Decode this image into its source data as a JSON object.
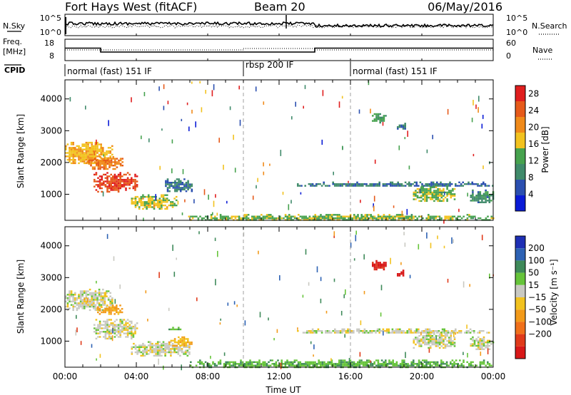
{
  "header": {
    "station": "Fort Hays West (fitACF)",
    "beam": "Beam 20",
    "date": "06/May/2016"
  },
  "noise_panel": {
    "left_label": "N.Sky",
    "right_label": "N.Search",
    "left_ticks": [
      "10^5",
      "10^0"
    ],
    "right_ticks": [
      "10^5",
      "10^0"
    ]
  },
  "freq_panel": {
    "left_label_top": "Freq.",
    "left_label_unit": "[MHz]",
    "left_ticks": [
      "18",
      "8"
    ],
    "right_label": "Nave",
    "right_ticks": [
      "60",
      "0"
    ]
  },
  "cpid": {
    "label": "CPID",
    "segments": [
      {
        "label": "normal (fast) 151 IF",
        "start_h": 0
      },
      {
        "label": "rbsp 200 IF",
        "start_h": 10
      },
      {
        "label": "normal (fast) 151 IF",
        "start_h": 16
      }
    ]
  },
  "colors": {
    "power_scale": [
      "#0a1bd6",
      "#2b4fb0",
      "#3f8a6a",
      "#46a24e",
      "#f2c21f",
      "#f08a1a",
      "#e65a1a",
      "#e01e1e"
    ],
    "velocity_scale": [
      "#1e2fb4",
      "#2d62b4",
      "#3f8a5a",
      "#66c43a",
      "#c9c9c2",
      "#f2c21f",
      "#f29a1a",
      "#f0701a",
      "#e03a1a",
      "#d81818"
    ]
  },
  "chart_data": [
    {
      "type": "heatmap",
      "name": "power",
      "xlabel": "Time UT",
      "ylabel": "Slant Range [km]",
      "xlim_hours": [
        0,
        24
      ],
      "ylim_km": [
        180,
        4600
      ],
      "x_ticks": [
        "00:00",
        "04:00",
        "08:00",
        "12:00",
        "16:00",
        "20:00",
        "00:00"
      ],
      "y_ticks": [
        1000,
        2000,
        3000,
        4000
      ],
      "colorbar": {
        "label": "Power [dB]",
        "ticks": [
          4,
          8,
          12,
          16,
          20,
          24,
          28
        ],
        "range": [
          0,
          30
        ]
      },
      "mode_change_hours": [
        10,
        16
      ],
      "regions": [
        {
          "t0": 0.0,
          "t1": 2.7,
          "r0": 1950,
          "r1": 2650,
          "value": 18
        },
        {
          "t0": 1.2,
          "t1": 3.2,
          "r0": 1800,
          "r1": 2200,
          "value": 22
        },
        {
          "t0": 1.6,
          "t1": 4.0,
          "r0": 1100,
          "r1": 1700,
          "value": 26
        },
        {
          "t0": 3.7,
          "t1": 6.2,
          "r0": 550,
          "r1": 1000,
          "value": 16
        },
        {
          "t0": 5.5,
          "t1": 7.1,
          "r0": 1100,
          "r1": 1500,
          "value": 8
        },
        {
          "t0": 6.8,
          "t1": 24.0,
          "r0": 180,
          "r1": 380,
          "value": 14
        },
        {
          "t0": 13.0,
          "t1": 24.0,
          "r0": 1250,
          "r1": 1400,
          "value": 8
        },
        {
          "t0": 19.5,
          "t1": 21.8,
          "r0": 800,
          "r1": 1300,
          "value": 14
        },
        {
          "t0": 17.2,
          "t1": 18.0,
          "r0": 3250,
          "r1": 3550,
          "value": 12
        },
        {
          "t0": 18.6,
          "t1": 19.1,
          "r0": 3050,
          "r1": 3250,
          "value": 8
        },
        {
          "t0": 22.7,
          "t1": 24.0,
          "r0": 750,
          "r1": 1150,
          "value": 10
        }
      ]
    },
    {
      "type": "heatmap",
      "name": "velocity",
      "xlabel": "Time UT",
      "ylabel": "Slant Range [km]",
      "xlim_hours": [
        0,
        24
      ],
      "ylim_km": [
        180,
        4600
      ],
      "x_ticks": [
        "00:00",
        "04:00",
        "08:00",
        "12:00",
        "16:00",
        "20:00",
        "00:00"
      ],
      "y_ticks": [
        1000,
        2000,
        3000,
        4000
      ],
      "colorbar": {
        "label": "Velocity [m s⁻¹]",
        "ticks": [
          "200",
          "100",
          "50",
          "15",
          "−15",
          "−50",
          "−100",
          "−200"
        ]
      },
      "mode_change_hours": [
        10,
        16
      ],
      "regions": [
        {
          "t0": 0.0,
          "t1": 2.7,
          "r0": 1950,
          "r1": 2650,
          "value": 0
        },
        {
          "t0": 1.8,
          "t1": 3.2,
          "r0": 1850,
          "r1": 2150,
          "value": -60
        },
        {
          "t0": 1.6,
          "t1": 4.0,
          "r0": 1100,
          "r1": 1700,
          "value": 0
        },
        {
          "t0": 3.7,
          "t1": 7.0,
          "r0": 550,
          "r1": 1000,
          "value": 0
        },
        {
          "t0": 5.8,
          "t1": 7.1,
          "r0": 850,
          "r1": 1150,
          "value": -40
        },
        {
          "t0": 5.8,
          "t1": 6.6,
          "r0": 1350,
          "r1": 1450,
          "value": 40
        },
        {
          "t0": 7.0,
          "t1": 24.0,
          "r0": 180,
          "r1": 420,
          "value": 40
        },
        {
          "t0": 13.0,
          "t1": 24.0,
          "r0": 1250,
          "r1": 1400,
          "value": 0
        },
        {
          "t0": 19.5,
          "t1": 21.8,
          "r0": 800,
          "r1": 1300,
          "value": 0
        },
        {
          "t0": 17.2,
          "t1": 18.0,
          "r0": 3250,
          "r1": 3550,
          "value": -220
        },
        {
          "t0": 18.6,
          "t1": 19.1,
          "r0": 3050,
          "r1": 3250,
          "value": -220
        },
        {
          "t0": 22.7,
          "t1": 24.0,
          "r0": 750,
          "r1": 1150,
          "value": 0
        }
      ]
    }
  ]
}
